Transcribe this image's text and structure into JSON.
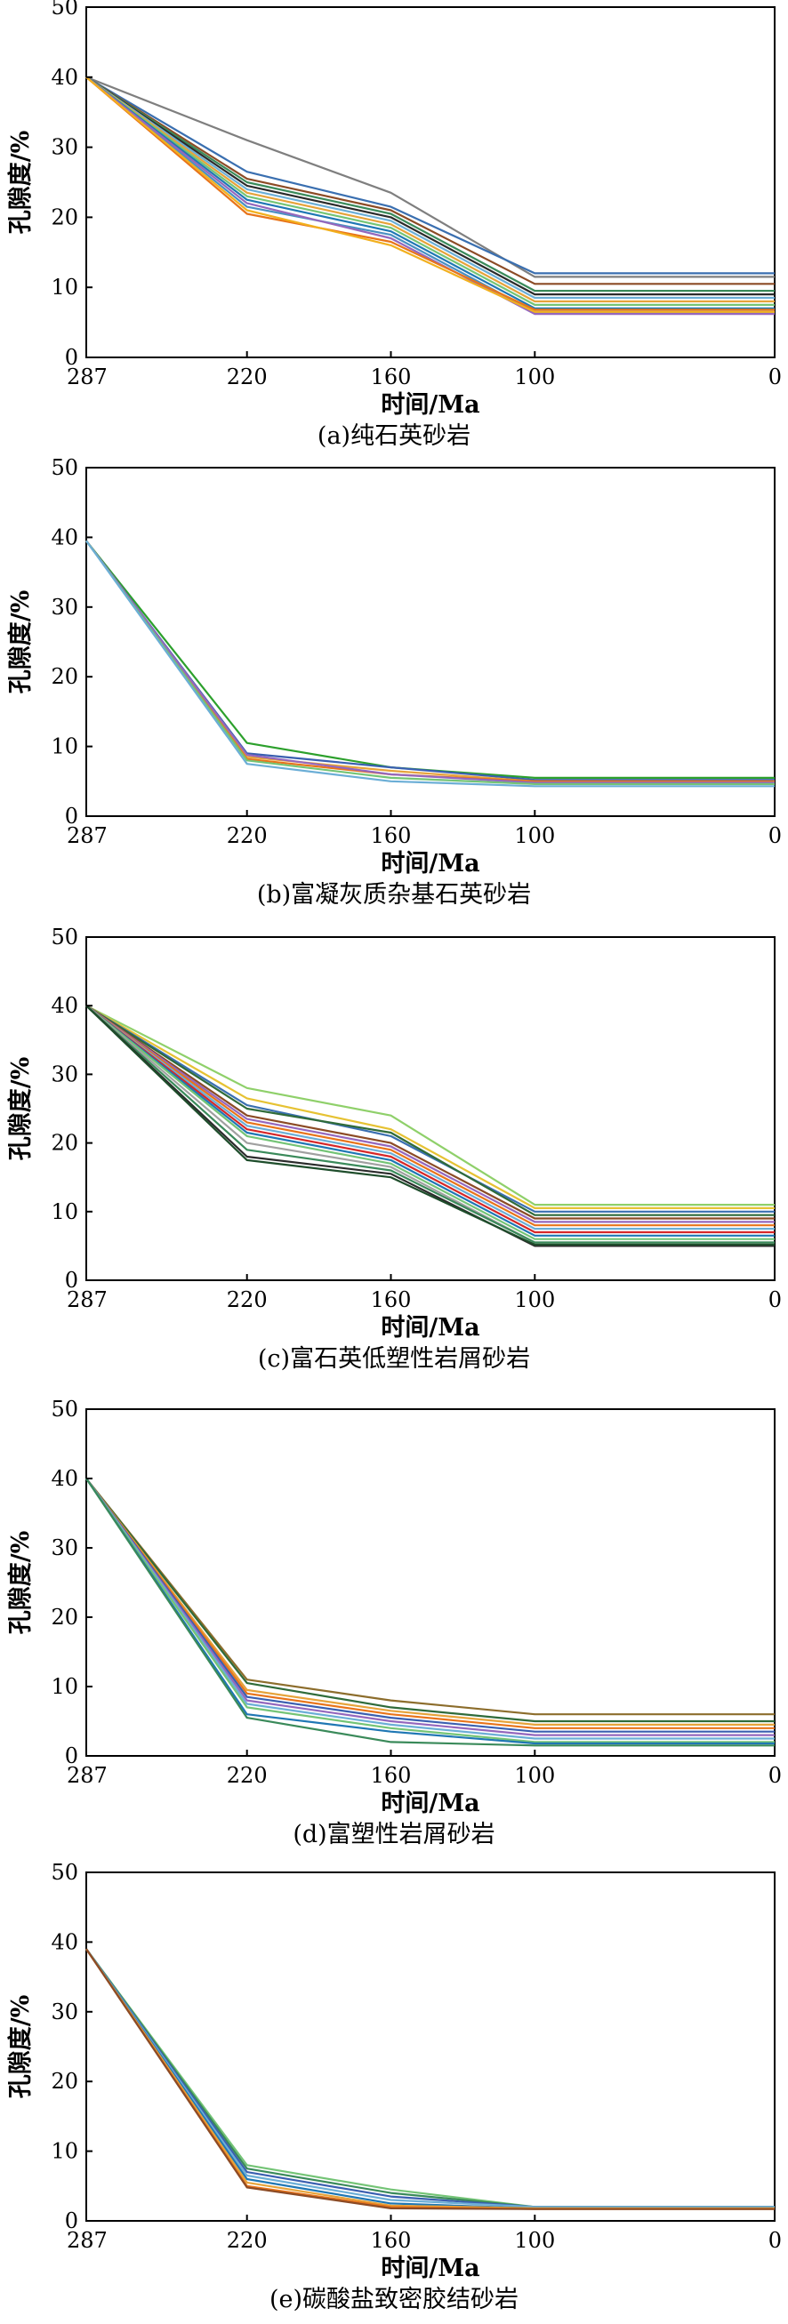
{
  "chart_data": [
    {
      "type": "line",
      "caption": "(a)纯石英砂岩",
      "xlabel": "时间/Ma",
      "ylabel": "孔隙度/%",
      "x": [
        287,
        220,
        160,
        100,
        0
      ],
      "x_reversed": true,
      "xticks": [
        "287",
        "220",
        "160",
        "100",
        "0"
      ],
      "yticks": [
        "0",
        "10",
        "20",
        "30",
        "40",
        "50"
      ],
      "ylim": [
        0,
        50
      ],
      "series": [
        {
          "color": "#7f7f7f",
          "values": [
            40,
            31,
            23.5,
            11.5,
            11.5
          ]
        },
        {
          "color": "#3a6fb0",
          "values": [
            40,
            26.5,
            21.5,
            12,
            12
          ]
        },
        {
          "color": "#8c4b25",
          "values": [
            40,
            25.5,
            21,
            10.5,
            10.5
          ]
        },
        {
          "color": "#3a8a5a",
          "values": [
            40,
            25,
            20.5,
            9.5,
            9.5
          ]
        },
        {
          "color": "#2b2b2b",
          "values": [
            40,
            24.5,
            20,
            9,
            9
          ]
        },
        {
          "color": "#6baed6",
          "values": [
            40,
            24,
            19.5,
            8.5,
            8.5
          ]
        },
        {
          "color": "#e6a33a",
          "values": [
            40,
            23.5,
            19,
            8,
            8
          ]
        },
        {
          "color": "#74c476",
          "values": [
            40,
            23,
            18.5,
            7.5,
            7.5
          ]
        },
        {
          "color": "#1f77b4",
          "values": [
            40,
            22.5,
            18,
            7,
            7
          ]
        },
        {
          "color": "#4a90c2",
          "values": [
            40,
            21.5,
            17.5,
            6.5,
            6.5
          ]
        },
        {
          "color": "#9467bd",
          "values": [
            40,
            22,
            17,
            6.2,
            6.2
          ]
        },
        {
          "color": "#e8741a",
          "values": [
            40,
            20.5,
            16.5,
            6.8,
            6.8
          ]
        },
        {
          "color": "#f2b01e",
          "values": [
            40,
            21,
            16,
            6.5,
            6.5
          ]
        }
      ]
    },
    {
      "type": "line",
      "caption": "(b)富凝灰质杂基石英砂岩",
      "xlabel": "时间/Ma",
      "ylabel": "孔隙度/%",
      "x": [
        287,
        220,
        160,
        100,
        0
      ],
      "x_reversed": true,
      "xticks": [
        "287",
        "220",
        "160",
        "100",
        "0"
      ],
      "yticks": [
        "0",
        "10",
        "20",
        "30",
        "40",
        "50"
      ],
      "ylim": [
        0,
        50
      ],
      "series": [
        {
          "color": "#2ca02c",
          "values": [
            39.5,
            10.5,
            7,
            5.5,
            5.5
          ]
        },
        {
          "color": "#3a5fb0",
          "values": [
            39.5,
            9,
            7,
            5.2,
            5.2
          ]
        },
        {
          "color": "#e6a33a",
          "values": [
            39.5,
            8.5,
            6.5,
            5,
            5
          ]
        },
        {
          "color": "#e8741a",
          "values": [
            39.5,
            8.2,
            6,
            5,
            5
          ]
        },
        {
          "color": "#9467bd",
          "values": [
            39.5,
            8.8,
            6,
            4.8,
            4.8
          ]
        },
        {
          "color": "#74c476",
          "values": [
            39.5,
            8,
            5.5,
            4.6,
            4.6
          ]
        },
        {
          "color": "#6baed6",
          "values": [
            39.5,
            7.5,
            5,
            4.3,
            4.3
          ]
        }
      ]
    },
    {
      "type": "line",
      "caption": "(c)富石英低塑性岩屑砂岩",
      "xlabel": "时间/Ma",
      "ylabel": "孔隙度/%",
      "x": [
        287,
        220,
        160,
        100,
        0
      ],
      "x_reversed": true,
      "xticks": [
        "287",
        "220",
        "160",
        "100",
        "0"
      ],
      "yticks": [
        "0",
        "10",
        "20",
        "30",
        "40",
        "50"
      ],
      "ylim": [
        0,
        50
      ],
      "series": [
        {
          "color": "#8fd06a",
          "values": [
            40,
            28,
            24,
            11,
            11
          ]
        },
        {
          "color": "#e6c233",
          "values": [
            40,
            26.5,
            22,
            10.5,
            10.5
          ]
        },
        {
          "color": "#3a6fb0",
          "values": [
            40,
            25.5,
            21,
            10,
            10
          ]
        },
        {
          "color": "#2f6b3a",
          "values": [
            40,
            25,
            21.5,
            9.5,
            9.5
          ]
        },
        {
          "color": "#8c4b25",
          "values": [
            40,
            24,
            20,
            9,
            9
          ]
        },
        {
          "color": "#9467bd",
          "values": [
            40,
            23.5,
            19.5,
            8.5,
            8.5
          ]
        },
        {
          "color": "#e8741a",
          "values": [
            40,
            23,
            19,
            8,
            8
          ]
        },
        {
          "color": "#6baed6",
          "values": [
            40,
            22.5,
            18.5,
            7.5,
            7.5
          ]
        },
        {
          "color": "#d62728",
          "values": [
            40,
            22,
            18,
            7,
            7
          ]
        },
        {
          "color": "#1f77b4",
          "values": [
            40,
            21.5,
            17.5,
            6.5,
            6.5
          ]
        },
        {
          "color": "#74c476",
          "values": [
            40,
            21,
            17,
            6,
            6
          ]
        },
        {
          "color": "#a0a0a0",
          "values": [
            40,
            20,
            16.5,
            5.5,
            5.5
          ]
        },
        {
          "color": "#3a8a5a",
          "values": [
            40,
            19,
            16,
            5.5,
            5.5
          ]
        },
        {
          "color": "#2b2b2b",
          "values": [
            40,
            18,
            15.5,
            5,
            5
          ]
        },
        {
          "color": "#1e4d2b",
          "values": [
            40,
            17.5,
            15,
            5.2,
            5.2
          ]
        }
      ]
    },
    {
      "type": "line",
      "caption": "(d)富塑性岩屑砂岩",
      "xlabel": "时间/Ma",
      "ylabel": "孔隙度/%",
      "x": [
        287,
        220,
        160,
        100,
        0
      ],
      "x_reversed": true,
      "xticks": [
        "287",
        "220",
        "160",
        "100",
        "0"
      ],
      "yticks": [
        "0",
        "10",
        "20",
        "30",
        "40",
        "50"
      ],
      "ylim": [
        0,
        50
      ],
      "series": [
        {
          "color": "#8c6d2c",
          "values": [
            40,
            11,
            8,
            6,
            6
          ]
        },
        {
          "color": "#2f6b3a",
          "values": [
            40,
            10.5,
            7,
            5,
            5
          ]
        },
        {
          "color": "#e6a33a",
          "values": [
            40,
            9.5,
            6.5,
            4.5,
            4.5
          ]
        },
        {
          "color": "#e8741a",
          "values": [
            40,
            9,
            6,
            4,
            4
          ]
        },
        {
          "color": "#3a5fb0",
          "values": [
            40,
            8.5,
            5.5,
            3.5,
            3.5
          ]
        },
        {
          "color": "#9467bd",
          "values": [
            40,
            8,
            5,
            3,
            3
          ]
        },
        {
          "color": "#6baed6",
          "values": [
            40,
            7.5,
            4.5,
            2.5,
            2.5
          ]
        },
        {
          "color": "#74c476",
          "values": [
            40,
            7,
            4,
            2,
            2
          ]
        },
        {
          "color": "#1f77b4",
          "values": [
            40,
            6,
            3.5,
            1.8,
            1.8
          ]
        },
        {
          "color": "#3a8a5a",
          "values": [
            40,
            5.5,
            2,
            1.5,
            1.5
          ]
        }
      ]
    },
    {
      "type": "line",
      "caption": "(e)碳酸盐致密胶结砂岩",
      "xlabel": "时间/Ma",
      "ylabel": "孔隙度/%",
      "x": [
        287,
        220,
        160,
        100,
        0
      ],
      "x_reversed": true,
      "xticks": [
        "287",
        "220",
        "160",
        "100",
        "0"
      ],
      "yticks": [
        "0",
        "10",
        "20",
        "30",
        "40",
        "50"
      ],
      "ylim": [
        0,
        50
      ],
      "series": [
        {
          "color": "#74c476",
          "values": [
            39,
            8,
            4.5,
            2,
            2
          ]
        },
        {
          "color": "#3a8a5a",
          "values": [
            39,
            7.5,
            4,
            2,
            2
          ]
        },
        {
          "color": "#3a5fb0",
          "values": [
            39,
            7,
            3.5,
            2,
            2
          ]
        },
        {
          "color": "#6baed6",
          "values": [
            39,
            6.5,
            3,
            2,
            2
          ]
        },
        {
          "color": "#1f77b4",
          "values": [
            39,
            6,
            2.5,
            1.8,
            1.8
          ]
        },
        {
          "color": "#e6a33a",
          "values": [
            39,
            5.5,
            2.2,
            1.8,
            1.8
          ]
        },
        {
          "color": "#e8741a",
          "values": [
            39,
            5,
            2,
            1.7,
            1.7
          ]
        },
        {
          "color": "#8c4b25",
          "values": [
            39,
            4.8,
            1.8,
            1.7,
            1.7
          ]
        }
      ]
    }
  ]
}
